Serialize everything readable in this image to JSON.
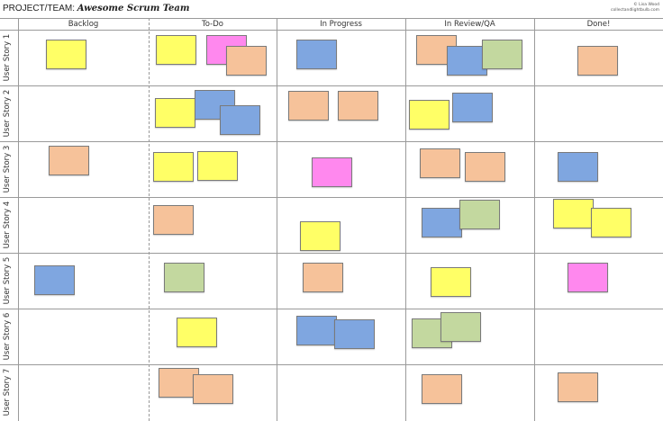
{
  "header": {
    "label": "PROJECT/TEAM:",
    "team": "Awesome Scrum Team",
    "credit": [
      "© Lisa Wood",
      "collectandlightbulb.com"
    ]
  },
  "colors": {
    "yellow": "#ffff66",
    "pink": "#ff88ee",
    "orange": "#f6c29a",
    "blue": "#7fa6e0",
    "green": "#c3d89f",
    "grid": "#9a9a9a"
  },
  "columns": [
    "Backlog",
    "To-Do",
    "In Progress",
    "In Review/QA",
    "Done!"
  ],
  "rows": [
    {
      "label": "User Story 1",
      "notes_per_column": [
        [
          "yellow"
        ],
        [
          "yellow",
          "pink",
          "orange"
        ],
        [
          "blue"
        ],
        [
          "orange",
          "blue",
          "green"
        ],
        [
          "orange"
        ]
      ]
    },
    {
      "label": "User Story 2",
      "notes_per_column": [
        [],
        [
          "yellow",
          "blue",
          "blue"
        ],
        [
          "orange",
          "orange"
        ],
        [
          "yellow",
          "blue"
        ],
        []
      ]
    },
    {
      "label": "User Story 3",
      "notes_per_column": [
        [
          "orange"
        ],
        [
          "yellow",
          "yellow"
        ],
        [
          "pink"
        ],
        [
          "orange",
          "orange"
        ],
        [
          "blue"
        ]
      ]
    },
    {
      "label": "User Story 4",
      "notes_per_column": [
        [],
        [
          "orange"
        ],
        [
          "yellow"
        ],
        [
          "blue",
          "green"
        ],
        [
          "yellow",
          "yellow"
        ]
      ]
    },
    {
      "label": "User Story 5",
      "notes_per_column": [
        [
          "blue"
        ],
        [
          "green"
        ],
        [
          "orange"
        ],
        [
          "yellow"
        ],
        [
          "pink"
        ]
      ]
    },
    {
      "label": "User Story 6",
      "notes_per_column": [
        [],
        [
          "yellow"
        ],
        [
          "blue",
          "blue"
        ],
        [
          "green",
          "green"
        ],
        []
      ]
    },
    {
      "label": "User Story 7",
      "notes_per_column": [
        [],
        [
          "orange",
          "orange"
        ],
        [],
        [
          "orange"
        ],
        [
          "orange"
        ]
      ]
    }
  ]
}
